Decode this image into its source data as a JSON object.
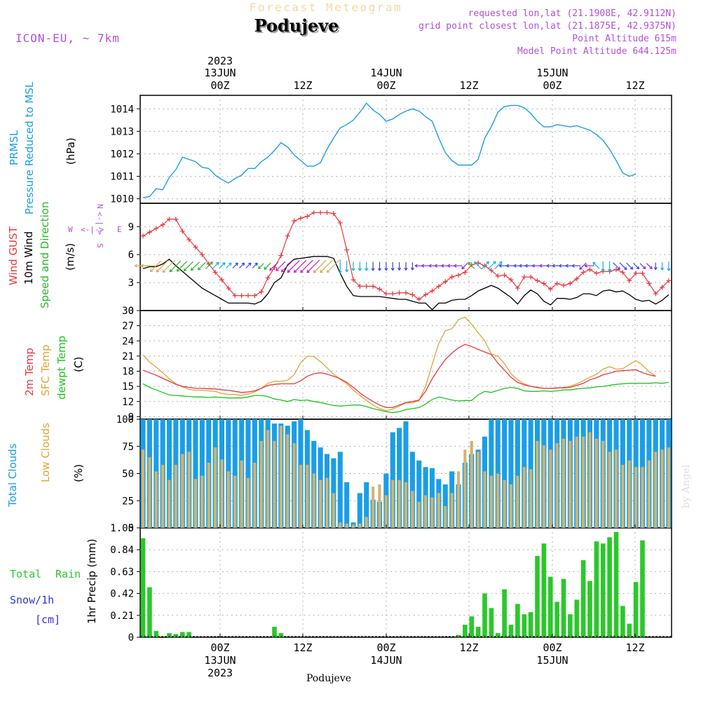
{
  "header": {
    "chart_kind": "Forecast Meteogram",
    "location": "Podujeve",
    "model": "ICON-EU,  ~ 7km",
    "requested_point": "requested lon,lat (21.1908E, 42.9112N)",
    "grid_point": "grid point closest lon,lat (21.1875E, 42.9375N)",
    "point_altitude": "Point Altitude 615m",
    "model_point_altitude": "Model Point Altitude 644.125m",
    "footer_location": "Podujeve",
    "watermark": "by Angel"
  },
  "colors": {
    "pressure": "#1a9ee8",
    "gust": "#e8383c",
    "wind": "#000000",
    "wind_dir_label": "#2ab82a",
    "temp2m": "#e8383c",
    "sfc_temp": "#dda53a",
    "dewpt": "#1ec41e",
    "total_clouds": "#1a9ee8",
    "low_clouds": "#d2b46e",
    "rain": "#2ac82a",
    "snow": "#3333dd",
    "purple": "#b050d8",
    "grid": "#999999"
  },
  "chart_data": [
    {
      "type": "line",
      "panel": "pressure",
      "ylabel_lines": [
        "PRMSL",
        "Pressure Reduced to MSL"
      ],
      "unit": "(hPa)",
      "ylim": [
        1009.8,
        1014.6
      ],
      "yticks": [
        "1010",
        "1011",
        "1012",
        "1013",
        "1014"
      ],
      "grid": true,
      "series": [
        {
          "name": "PRMSL",
          "values": [
            1010.05,
            1010.1,
            1010.45,
            1010.4,
            1010.95,
            1011.3,
            1011.85,
            1011.75,
            1011.65,
            1011.4,
            1011.35,
            1011.05,
            1010.85,
            1010.7,
            1010.9,
            1011.05,
            1011.35,
            1011.35,
            1011.65,
            1011.85,
            1012.15,
            1012.5,
            1012.3,
            1011.95,
            1011.7,
            1011.45,
            1011.45,
            1011.6,
            1012.2,
            1012.7,
            1013.15,
            1013.3,
            1013.5,
            1013.85,
            1014.25,
            1013.95,
            1013.75,
            1013.45,
            1013.55,
            1013.75,
            1013.9,
            1014.0,
            1013.9,
            1013.65,
            1013.45,
            1012.7,
            1012.05,
            1011.7,
            1011.5,
            1011.5,
            1011.5,
            1011.75,
            1012.7,
            1013.2,
            1013.85,
            1014.1,
            1014.15,
            1014.15,
            1014.05,
            1013.8,
            1013.45,
            1013.2,
            1013.2,
            1013.3,
            1013.25,
            1013.2,
            1013.25,
            1013.15,
            1013.05,
            1012.85,
            1012.6,
            1012.2,
            1011.7,
            1011.15,
            1011.0,
            1011.1
          ]
        }
      ]
    },
    {
      "type": "line",
      "panel": "wind",
      "ylabel_lines": [
        "Wind GUST",
        "10m Wind",
        "Speed and Direction"
      ],
      "unit": "(m/s)",
      "ylim": [
        0,
        11.5
      ],
      "yticks": [
        "0",
        "3",
        "6",
        "9"
      ],
      "compass": {
        "west": "W",
        "east": "E",
        "north": "N",
        "south": "S",
        "arrows": "<-|->"
      },
      "grid": true,
      "series": [
        {
          "name": "Wind GUST",
          "values": [
            8.0,
            8.4,
            8.8,
            9.2,
            9.8,
            9.8,
            8.5,
            7.6,
            6.8,
            6.0,
            5.0,
            4.1,
            3.3,
            2.4,
            1.6,
            1.6,
            1.6,
            1.6,
            2.0,
            3.5,
            4.6,
            5.9,
            8.0,
            9.6,
            9.9,
            10.1,
            10.5,
            10.5,
            10.5,
            10.4,
            9.4,
            6.5,
            3.3,
            2.6,
            2.6,
            2.6,
            2.3,
            1.8,
            1.8,
            1.9,
            1.9,
            1.7,
            1.2,
            1.7,
            2.1,
            2.6,
            3.1,
            3.6,
            3.8,
            4.1,
            4.9,
            5.1,
            4.8,
            4.3,
            3.7,
            3.8,
            3.3,
            2.4,
            3.6,
            3.6,
            3.2,
            2.9,
            2.3,
            2.9,
            2.7,
            2.9,
            3.4,
            4.1,
            4.4,
            4.0,
            4.2,
            4.2,
            4.4,
            4.1,
            3.2,
            4.0,
            4.0,
            2.9,
            1.8,
            2.5,
            3.2
          ]
        },
        {
          "name": "10m Wind",
          "values": [
            4.5,
            4.7,
            4.7,
            5.0,
            5.5,
            4.8,
            4.2,
            3.6,
            3.0,
            2.4,
            2.0,
            1.6,
            1.2,
            0.8,
            0.8,
            0.8,
            0.8,
            0.7,
            1.0,
            1.8,
            3.0,
            3.5,
            4.9,
            5.5,
            5.6,
            5.7,
            5.8,
            5.8,
            5.8,
            5.6,
            4.0,
            2.6,
            1.6,
            1.5,
            1.5,
            1.5,
            1.5,
            1.4,
            1.3,
            1.2,
            1.2,
            1.0,
            0.8,
            0.8,
            0.1,
            0.8,
            0.8,
            1.1,
            1.2,
            1.2,
            1.6,
            2.1,
            2.4,
            2.7,
            2.4,
            1.9,
            1.4,
            0.7,
            1.6,
            2.2,
            1.8,
            1.0,
            0.6,
            1.3,
            1.3,
            1.2,
            1.4,
            1.8,
            1.8,
            1.6,
            2.1,
            2.2,
            2.0,
            2.1,
            1.7,
            1.2,
            1.0,
            1.1,
            0.7,
            1.1,
            1.7
          ]
        }
      ],
      "wind_dir": {
        "samples": [
          "W",
          "W",
          "SW",
          "SW",
          "SW",
          "SW",
          "SW",
          "SW",
          "SW",
          "SW",
          "NE",
          "NE",
          "NE",
          "NE",
          "NE",
          "NE",
          "NE",
          "NE",
          "SW",
          "SW",
          "SW",
          "SW",
          "SW",
          "SW",
          "SW",
          "SW",
          "SW",
          "SW",
          "SW",
          "SW",
          "S",
          "S",
          "S",
          "S",
          "S",
          "S",
          "S",
          "S",
          "S",
          "S",
          "S",
          "S",
          "W",
          "W",
          "W",
          "W",
          "W",
          "W",
          "W",
          "SW",
          "NW",
          "NW",
          "NE",
          "NE",
          "NE",
          "W",
          "W",
          "W",
          "W",
          "W",
          "W",
          "W",
          "W",
          "W",
          "W",
          "W",
          "W",
          "SW",
          "W",
          "NW",
          "S",
          "S",
          "SE",
          "SE",
          "SE",
          "SE",
          "SE",
          "SE",
          "S",
          "S",
          "S"
        ],
        "colors": [
          "#d2b46e",
          "#dda53a",
          "#dda53a",
          "#dda53a",
          "#d2b46e",
          "#2ab82a",
          "#2ab82a",
          "#2ab82a",
          "#2ab82a",
          "#2ab82a",
          "#2ab82a",
          "#1ab0d8",
          "#1ab0d8",
          "#1ab0d8",
          "#3b47e0",
          "#3b47e0",
          "#3b47e0",
          "#3b47e0",
          "#2ab82a",
          "#2ab82a",
          "#c020c0",
          "#c020c0",
          "#c020c0",
          "#c020c0",
          "#c020c0",
          "#c020c0",
          "#c020c0",
          "#dda53a",
          "#dda53a",
          "#d2b46e",
          "#1ab0d8",
          "#1ab0d8",
          "#1ab0d8",
          "#1ab0d8",
          "#1ab0d8",
          "#3b47e0",
          "#3b47e0",
          "#3b47e0",
          "#3b47e0",
          "#3b47e0",
          "#3b47e0",
          "#3b47e0",
          "#8a2be2",
          "#8a2be2",
          "#8a2be2",
          "#8a2be2",
          "#8a2be2",
          "#8a2be2",
          "#8a2be2",
          "#8a2be2",
          "#2ab82a",
          "#1ab0d8",
          "#1ab0d8",
          "#1ab0d8",
          "#1ab0d8",
          "#3b47e0",
          "#3b47e0",
          "#3b47e0",
          "#3b47e0",
          "#3b47e0",
          "#8a2be2",
          "#8a2be2",
          "#3b47e0",
          "#3b47e0",
          "#3b47e0",
          "#3b47e0",
          "#3b47e0",
          "#8a2be2",
          "#8a2be2",
          "#1ab0d8",
          "#1ab0d8",
          "#1ab0d8",
          "#3b47e0",
          "#3b47e0",
          "#3b47e0",
          "#3b47e0",
          "#8a2be2",
          "#8a2be2",
          "#3b47e0",
          "#1ab0d8",
          "#1ab0d8"
        ]
      }
    },
    {
      "type": "line",
      "panel": "temperature",
      "ylabel_lines": [
        "2m Temp",
        "SFC Temp",
        "dewpt Temp"
      ],
      "unit": "(C)",
      "ylim": [
        8.5,
        30
      ],
      "yticks": [
        "9",
        "12",
        "15",
        "18",
        "21",
        "24",
        "27",
        "30"
      ],
      "grid": true,
      "series": [
        {
          "name": "2m Temp",
          "values": [
            18.2,
            17.7,
            17.2,
            16.6,
            16.0,
            15.4,
            15.0,
            14.8,
            14.6,
            14.6,
            14.5,
            14.5,
            14.3,
            14.2,
            14.0,
            13.8,
            13.9,
            14.1,
            14.6,
            15.2,
            15.4,
            15.5,
            15.5,
            15.5,
            16.1,
            17.0,
            17.5,
            17.7,
            17.4,
            17.0,
            16.5,
            15.8,
            14.8,
            13.7,
            12.8,
            12.0,
            11.3,
            10.8,
            10.8,
            11.3,
            11.8,
            12.0,
            12.3,
            14.0,
            16.5,
            18.5,
            20.3,
            21.6,
            22.6,
            23.3,
            22.9,
            22.3,
            21.8,
            21.3,
            19.6,
            18.2,
            16.8,
            15.8,
            15.3,
            15.0,
            14.8,
            14.6,
            14.6,
            14.7,
            14.7,
            14.8,
            15.2,
            15.6,
            16.3,
            16.7,
            17.3,
            17.6,
            18.0,
            18.1,
            18.2,
            18.3,
            17.7,
            17.3,
            17.0
          ]
        },
        {
          "name": "SFC Temp",
          "values": [
            21.2,
            19.8,
            18.8,
            17.7,
            16.5,
            15.5,
            14.9,
            14.4,
            14.2,
            14.2,
            14.1,
            14.0,
            13.6,
            13.4,
            13.4,
            13.2,
            13.5,
            13.9,
            14.6,
            15.6,
            16.0,
            16.0,
            16.2,
            17.3,
            19.7,
            21.0,
            20.9,
            19.9,
            18.7,
            17.4,
            16.4,
            15.5,
            14.3,
            13.2,
            12.2,
            11.3,
            10.6,
            10.2,
            10.5,
            11.1,
            11.7,
            11.7,
            12.2,
            15.0,
            19.3,
            23.5,
            26.0,
            26.4,
            28.2,
            28.7,
            27.3,
            25.6,
            24.0,
            21.4,
            21.0,
            19.5,
            17.5,
            16.3,
            15.5,
            15.0,
            14.7,
            14.6,
            14.6,
            14.6,
            14.8,
            15.0,
            15.5,
            16.1,
            16.8,
            17.4,
            18.4,
            18.9,
            18.4,
            18.5,
            19.3,
            20.1,
            19.2,
            17.9,
            17.0
          ]
        },
        {
          "name": "dewpt Temp",
          "values": [
            15.5,
            14.8,
            14.3,
            13.8,
            13.3,
            13.2,
            13.1,
            13.0,
            12.9,
            12.9,
            12.8,
            12.9,
            12.8,
            12.7,
            12.7,
            12.7,
            12.9,
            13.2,
            13.2,
            13.0,
            12.5,
            12.3,
            12.0,
            12.4,
            12.2,
            12.3,
            12.0,
            11.8,
            11.5,
            11.2,
            11.1,
            11.2,
            11.3,
            11.3,
            11.0,
            10.6,
            10.3,
            10.0,
            9.8,
            10.0,
            10.4,
            10.6,
            10.8,
            11.5,
            12.4,
            12.9,
            12.6,
            12.3,
            12.1,
            12.2,
            12.2,
            13.3,
            14.0,
            13.8,
            14.2,
            14.6,
            14.8,
            14.6,
            14.1,
            14.0,
            14.0,
            14.1,
            14.0,
            14.1,
            14.3,
            14.3,
            14.5,
            14.6,
            14.7,
            14.9,
            15.0,
            15.2,
            15.4,
            15.5,
            15.6,
            15.6,
            15.6,
            15.6,
            15.7,
            15.6,
            15.8
          ]
        }
      ]
    },
    {
      "type": "bar",
      "panel": "clouds",
      "ylabel_lines": [
        "Total Clouds",
        "Low Clouds"
      ],
      "unit": "(%)",
      "ylim": [
        0,
        100
      ],
      "yticks": [
        "0",
        "25",
        "50",
        "75",
        "100"
      ],
      "grid": true,
      "series": [
        {
          "name": "Total Clouds",
          "values": [
            100,
            100,
            100,
            100,
            100,
            100,
            100,
            100,
            100,
            100,
            100,
            100,
            100,
            100,
            100,
            100,
            100,
            100,
            100,
            100,
            96,
            96,
            94,
            98,
            100,
            90,
            80,
            74,
            68,
            64,
            70,
            42,
            5,
            32,
            42,
            26,
            24,
            50,
            88,
            92,
            98,
            70,
            62,
            56,
            55,
            45,
            40,
            52,
            40,
            60,
            68,
            72,
            84,
            100,
            100,
            100,
            100,
            100,
            100,
            100,
            100,
            100,
            100,
            100,
            100,
            100,
            100,
            100,
            100,
            100,
            100,
            100,
            100,
            100,
            100,
            100,
            100,
            100,
            100,
            100,
            100
          ]
        },
        {
          "name": "Low Clouds",
          "values": [
            72,
            65,
            52,
            58,
            44,
            58,
            68,
            70,
            45,
            48,
            60,
            74,
            63,
            52,
            48,
            62,
            46,
            60,
            80,
            90,
            80,
            94,
            86,
            78,
            58,
            58,
            50,
            44,
            46,
            32,
            5,
            4,
            3,
            4,
            10,
            38,
            40,
            30,
            44,
            44,
            42,
            34,
            24,
            30,
            28,
            32,
            20,
            32,
            52,
            72,
            80,
            70,
            52,
            48,
            50,
            44,
            40,
            48,
            56,
            54,
            80,
            76,
            72,
            78,
            82,
            80,
            84,
            84,
            88,
            82,
            80,
            70,
            72,
            58,
            62,
            56,
            56,
            62,
            70,
            72,
            74
          ]
        }
      ]
    },
    {
      "type": "bar",
      "panel": "precip",
      "legend_lines": [
        "Total",
        "Rain",
        "Snow/1h",
        "[cm]"
      ],
      "ylabel": "1hr Precip (mm)",
      "ylim": [
        0,
        1.05
      ],
      "yticks": [
        "0",
        "0.21",
        "0.42",
        "0.63",
        "0.84",
        "1.05"
      ],
      "grid": true,
      "series": [
        {
          "name": "Total Rain",
          "values": [
            0.95,
            0.48,
            0.06,
            0,
            0.04,
            0.03,
            0.05,
            0.05,
            0,
            0,
            0,
            0,
            0,
            0,
            0,
            0,
            0,
            0,
            0,
            0,
            0.1,
            0.04,
            0,
            0,
            0,
            0,
            0,
            0,
            0,
            0,
            0,
            0,
            0,
            0,
            0,
            0,
            0,
            0,
            0,
            0,
            0,
            0,
            0,
            0,
            0,
            0,
            0,
            0,
            0.02,
            0.12,
            0.2,
            0.1,
            0.42,
            0.28,
            0.04,
            0.46,
            0.12,
            0.32,
            0.22,
            0.24,
            0.78,
            0.9,
            0.58,
            0.34,
            0.56,
            0.22,
            0.36,
            0.74,
            0.54,
            0.92,
            0.9,
            0.96,
            1.01,
            0.3,
            0.13,
            0.53,
            0.93
          ]
        }
      ]
    }
  ],
  "time_axis": {
    "grid_labels": [
      "00Z",
      "12Z",
      "00Z",
      "12Z",
      "00Z",
      "12Z"
    ],
    "dates": [
      {
        "line1": "13JUN",
        "line2": "2023"
      },
      {
        "line1": "14JUN",
        "line2": ""
      },
      {
        "line1": "15JUN",
        "line2": ""
      }
    ]
  }
}
